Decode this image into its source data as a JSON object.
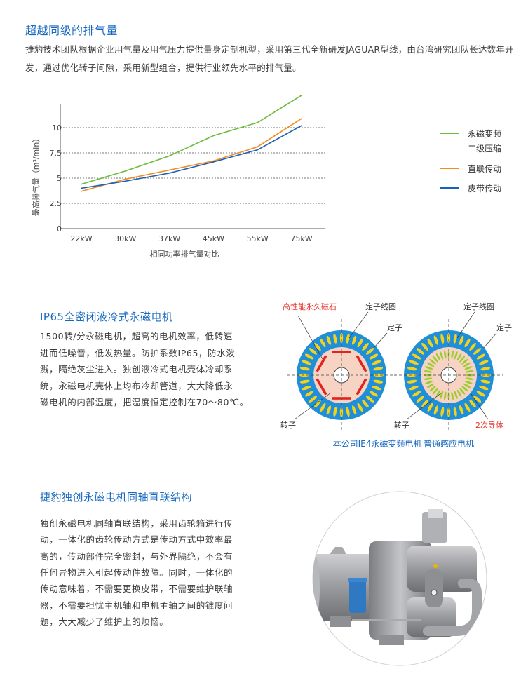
{
  "section1": {
    "title": "超越同级的排气量",
    "body": "捷豹技术团队根据企业用气量及用气压力提供量身定制机型，采用第三代全新研发JAGUAR型线，由台湾研究团队长达数年开发，通过优化转子间隙，采用新型组合，提供行业领先水平的排气量。"
  },
  "chart_data": {
    "type": "line",
    "title": "",
    "xlabel": "相同功率排气量对比",
    "ylabel": "最高排气量（m³/min）",
    "categories": [
      "22kW",
      "30kW",
      "37kW",
      "45kW",
      "55kW",
      "75kW"
    ],
    "yticks": [
      "0",
      "2.5",
      "5",
      "7.5",
      "10"
    ],
    "ylim": [
      0,
      12.5
    ],
    "grid": "horizontal dotted",
    "legend_position": "right",
    "series": [
      {
        "name": "永磁变频二级压缩",
        "name_lines": [
          "永磁变频",
          "二级压缩"
        ],
        "color": "#6dbb3a",
        "values": [
          4.4,
          5.7,
          7.2,
          9.2,
          10.5,
          13.2
        ]
      },
      {
        "name": "直联传动",
        "name_lines": [
          "直联传动"
        ],
        "color": "#f58a1f",
        "values": [
          3.7,
          4.9,
          5.8,
          6.7,
          8.1,
          10.9
        ]
      },
      {
        "name": "皮带传动",
        "name_lines": [
          "皮带传动"
        ],
        "color": "#1c62b8",
        "values": [
          4.0,
          4.7,
          5.5,
          6.6,
          7.8,
          10.2
        ]
      }
    ]
  },
  "section2": {
    "title": "IP65全密闭液冷式永磁电机",
    "lines": [
      "1500转/分永磁电机，超高的电机效率，低转速",
      "进而低噪音，低发热量。防护系数IP65，防水泼",
      "溅，隔绝灰尘进入。独创液冷式电机壳体冷却系",
      "统，永磁电机壳体上均布冷却管道，大大降低永",
      "磁电机的内部温度，把温度恒定控制在70～80℃。"
    ],
    "diagram": {
      "left": {
        "magnet_label": "高性能永久磁石",
        "coil_label": "定子线圈",
        "stator_label": "定子",
        "rotor_label": "转子",
        "caption": "本公司IE4永磁变频电机"
      },
      "right": {
        "coil_label": "定子线圈",
        "stator_label": "定子",
        "rotor_label": "转子",
        "conductor_label": "2次导体",
        "caption": "普通感应电机"
      },
      "colors": {
        "stator": "#1e8fd8",
        "rotor": "#f6d3c3",
        "coil": "#f5d21a",
        "magnet": "#e0241f",
        "conductor": "#9ccc2e",
        "caption": "#1769c0",
        "highlight": "#e8362e"
      }
    }
  },
  "section3": {
    "title": "捷豹独创永磁电机同轴直联结构",
    "lines": [
      "独创永磁电机同轴直联结构，采用齿轮箱进行传",
      "动，一体化的齿轮传动方式是传动方式中效率最",
      "高的，传动部件完全密封，与外界隔绝，不会有",
      "任何异物进入引起传动件故障。同时，一体化的",
      "传动意味着，不需要更换皮带，不需要维护联轴",
      "器，不需要担忧主机轴和电机主轴之间的锥度问",
      "题，大大减少了维护上的烦恼。"
    ]
  }
}
